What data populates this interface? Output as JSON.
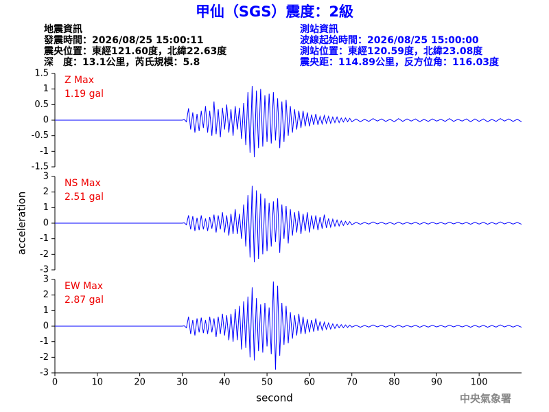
{
  "title": "甲仙（SGS）震度：2級",
  "header": {
    "left": [
      "地震資訊",
      "發震時間：2026/08/25 15:00:11",
      "震央位置：東經121.60度，北緯22.63度",
      "深　度：13.1公里，芮氏規模：5.8"
    ],
    "right": [
      "測站資訊",
      "波線起始時間：2026/08/25 15:00:00",
      "測站位置：東經120.59度，北緯23.08度",
      "震央距：114.89公里，反方位角：116.03度"
    ]
  },
  "footer": "中央氣象署",
  "chart_data": [
    {
      "type": "line",
      "label": "Z Max",
      "max_label": "1.19 gal",
      "color": "#0000ff",
      "xlim": [
        0,
        110
      ],
      "ylim": [
        -1.5,
        1.5
      ],
      "yticks": [
        -1.5,
        -1,
        -0.5,
        0,
        0.5,
        1,
        1.5
      ],
      "x": [
        0,
        30,
        30.5,
        31,
        31.5,
        32,
        32.5,
        33,
        33.5,
        34,
        34.5,
        35,
        35.5,
        36,
        36.5,
        37,
        37.5,
        38,
        38.5,
        39,
        39.5,
        40,
        40.5,
        41,
        41.5,
        42,
        42.5,
        43,
        43.5,
        44,
        44.5,
        45,
        45.5,
        46,
        46.5,
        47,
        47.5,
        48,
        48.5,
        49,
        49.5,
        50,
        50.5,
        51,
        51.5,
        52,
        52.5,
        53,
        53.5,
        54,
        54.5,
        55,
        55.5,
        56,
        56.5,
        57,
        57.5,
        58,
        58.5,
        59,
        59.5,
        60,
        60.5,
        61,
        61.5,
        62,
        62.5,
        63,
        63.5,
        64,
        64.5,
        65,
        65.5,
        66,
        66.5,
        67,
        67.5,
        68,
        68.5,
        69,
        69.5,
        70,
        71,
        72,
        73,
        74,
        75,
        76,
        77,
        78,
        79,
        80,
        81,
        82,
        83,
        84,
        85,
        86,
        87,
        88,
        89,
        90,
        91,
        92,
        93,
        94,
        95,
        96,
        97,
        98,
        99,
        100,
        101,
        102,
        103,
        104,
        105,
        106,
        107,
        108,
        109,
        110
      ],
      "values": [
        0,
        0,
        0.02,
        -0.05,
        0.38,
        -0.3,
        0.25,
        -0.4,
        0.2,
        -0.35,
        0.3,
        -0.25,
        0.45,
        -0.4,
        0.3,
        -0.5,
        0.6,
        -0.45,
        0.35,
        -0.55,
        0.4,
        -0.3,
        0.5,
        -0.4,
        0.35,
        -0.5,
        0.45,
        -0.3,
        0.4,
        -0.6,
        0.55,
        -0.8,
        0.9,
        -1.05,
        1.1,
        -1.19,
        0.95,
        -0.9,
        1.0,
        -0.85,
        0.8,
        -0.7,
        0.85,
        -0.75,
        0.9,
        -0.65,
        0.7,
        -0.9,
        0.6,
        -0.7,
        0.65,
        -0.5,
        0.45,
        -0.4,
        0.35,
        -0.3,
        0.3,
        -0.25,
        0.3,
        -0.2,
        0.25,
        -0.2,
        0.18,
        -0.15,
        0.2,
        -0.15,
        0.12,
        -0.12,
        0.15,
        -0.1,
        0.12,
        -0.1,
        0.1,
        -0.08,
        0.1,
        -0.08,
        0.07,
        -0.06,
        0.07,
        -0.05,
        0.06,
        -0.05,
        0.04,
        -0.05,
        0.03,
        -0.04,
        0.05,
        -0.03,
        0.04,
        -0.04,
        0.03,
        -0.05,
        0.05,
        -0.04,
        0.04,
        -0.03,
        0.04,
        -0.05,
        0.03,
        -0.04,
        0.04,
        -0.03,
        0.03,
        -0.04,
        0.05,
        -0.04,
        0.03,
        -0.03,
        0.04,
        -0.05,
        0.04,
        -0.04,
        0.04,
        -0.05,
        0.03,
        -0.04,
        0.05,
        -0.03,
        0.04,
        -0.04,
        0.03,
        -0.05
      ]
    },
    {
      "type": "line",
      "label": "NS Max",
      "max_label": "2.51 gal",
      "ylabel": "acceleration",
      "color": "#0000ff",
      "xlim": [
        0,
        110
      ],
      "ylim": [
        -3,
        3
      ],
      "yticks": [
        -3,
        -2,
        -1,
        0,
        1,
        2,
        3
      ],
      "x": [
        0,
        30,
        30.5,
        31,
        31.5,
        32,
        32.5,
        33,
        33.5,
        34,
        34.5,
        35,
        35.5,
        36,
        36.5,
        37,
        37.5,
        38,
        38.5,
        39,
        39.5,
        40,
        40.5,
        41,
        41.5,
        42,
        42.5,
        43,
        43.5,
        44,
        44.5,
        45,
        45.5,
        46,
        46.5,
        47,
        47.5,
        48,
        48.5,
        49,
        49.5,
        50,
        50.5,
        51,
        51.5,
        52,
        52.5,
        53,
        53.5,
        54,
        54.5,
        55,
        55.5,
        56,
        56.5,
        57,
        57.5,
        58,
        58.5,
        59,
        59.5,
        60,
        60.5,
        61,
        61.5,
        62,
        62.5,
        63,
        63.5,
        64,
        64.5,
        65,
        65.5,
        66,
        66.5,
        67,
        67.5,
        68,
        68.5,
        69,
        69.5,
        70,
        71,
        72,
        73,
        74,
        75,
        76,
        77,
        78,
        79,
        80,
        81,
        82,
        83,
        84,
        85,
        86,
        87,
        88,
        89,
        90,
        91,
        92,
        93,
        94,
        95,
        96,
        97,
        98,
        99,
        100,
        101,
        102,
        103,
        104,
        105,
        106,
        107,
        108,
        109,
        110
      ],
      "values": [
        0,
        0,
        0.02,
        -0.1,
        0.5,
        -0.4,
        0.45,
        -0.5,
        0.35,
        -0.45,
        0.5,
        -0.4,
        0.3,
        -0.5,
        0.4,
        -0.35,
        0.55,
        -0.6,
        0.5,
        -0.4,
        0.7,
        -0.6,
        0.5,
        -0.8,
        0.6,
        -0.7,
        0.9,
        -0.7,
        0.6,
        -1.0,
        1.2,
        -1.5,
        1.8,
        -2.2,
        2.4,
        -2.51,
        2.1,
        -2.3,
        1.9,
        -2.0,
        1.6,
        -1.8,
        1.3,
        -1.5,
        1.4,
        -1.2,
        1.6,
        -1.9,
        1.2,
        -1.0,
        1.1,
        -1.3,
        0.9,
        -0.8,
        0.7,
        -0.6,
        0.8,
        -0.7,
        0.6,
        -0.5,
        0.7,
        -0.6,
        0.5,
        -0.4,
        0.5,
        -0.45,
        0.4,
        -0.35,
        0.55,
        -0.3,
        0.3,
        -0.25,
        0.25,
        -0.2,
        0.2,
        -0.18,
        0.15,
        -0.15,
        0.12,
        -0.1,
        0.1,
        -0.1,
        0.06,
        -0.07,
        0.05,
        -0.06,
        0.08,
        -0.05,
        0.06,
        -0.06,
        0.05,
        -0.07,
        0.07,
        -0.06,
        0.05,
        -0.05,
        0.06,
        -0.07,
        0.05,
        -0.06,
        0.06,
        -0.05,
        0.05,
        -0.06,
        0.07,
        -0.05,
        0.06,
        -0.05,
        0.05,
        -0.07,
        0.06,
        -0.06,
        0.06,
        -0.07,
        0.05,
        -0.06,
        0.08,
        -0.05,
        0.06,
        -0.06,
        0.05,
        -0.07
      ]
    },
    {
      "type": "line",
      "label": "EW Max",
      "max_label": "2.87 gal",
      "xlabel": "second",
      "color": "#0000ff",
      "xlim": [
        0,
        110
      ],
      "ylim": [
        -3,
        3
      ],
      "yticks": [
        -3,
        -2,
        -1,
        0,
        1,
        2,
        3
      ],
      "xticks": [
        0,
        10,
        20,
        30,
        40,
        50,
        60,
        70,
        80,
        90,
        100
      ],
      "x": [
        0,
        30,
        30.5,
        31,
        31.5,
        32,
        32.5,
        33,
        33.5,
        34,
        34.5,
        35,
        35.5,
        36,
        36.5,
        37,
        37.5,
        38,
        38.5,
        39,
        39.5,
        40,
        40.5,
        41,
        41.5,
        42,
        42.5,
        43,
        43.5,
        44,
        44.5,
        45,
        45.5,
        46,
        46.5,
        47,
        47.5,
        48,
        48.5,
        49,
        49.5,
        50,
        50.5,
        51,
        51.5,
        52,
        52.5,
        53,
        53.5,
        54,
        54.5,
        55,
        55.5,
        56,
        56.5,
        57,
        57.5,
        58,
        58.5,
        59,
        59.5,
        60,
        60.5,
        61,
        61.5,
        62,
        62.5,
        63,
        63.5,
        64,
        64.5,
        65,
        65.5,
        66,
        66.5,
        67,
        67.5,
        68,
        68.5,
        69,
        69.5,
        70,
        71,
        72,
        73,
        74,
        75,
        76,
        77,
        78,
        79,
        80,
        81,
        82,
        83,
        84,
        85,
        86,
        87,
        88,
        89,
        90,
        91,
        92,
        93,
        94,
        95,
        96,
        97,
        98,
        99,
        100,
        101,
        102,
        103,
        104,
        105,
        106,
        107,
        108,
        109,
        110
      ],
      "values": [
        0,
        0,
        0.02,
        -0.1,
        0.6,
        -0.5,
        0.4,
        -0.6,
        0.5,
        -0.4,
        0.55,
        -0.45,
        0.4,
        -0.5,
        0.6,
        -0.4,
        0.5,
        -0.7,
        0.6,
        -0.5,
        0.8,
        -0.6,
        0.7,
        -0.9,
        0.8,
        -1.0,
        1.1,
        -0.9,
        1.3,
        -1.5,
        1.6,
        -1.4,
        1.9,
        -2.0,
        2.5,
        -2.2,
        1.8,
        -1.6,
        1.4,
        -1.7,
        1.5,
        -1.3,
        1.2,
        -1.8,
        2.87,
        -2.8,
        2.6,
        -1.9,
        1.5,
        -1.2,
        1.3,
        -1.1,
        0.9,
        -0.8,
        0.7,
        -0.6,
        0.8,
        -0.5,
        0.6,
        -0.5,
        0.45,
        -0.4,
        0.4,
        -0.35,
        0.5,
        -0.3,
        0.3,
        -0.25,
        0.25,
        -0.2,
        0.2,
        -0.18,
        0.15,
        -0.15,
        0.12,
        -0.1,
        0.1,
        -0.1,
        0.08,
        -0.08,
        0.07,
        -0.06,
        0.06,
        -0.07,
        0.05,
        -0.06,
        0.08,
        -0.05,
        0.06,
        -0.06,
        0.05,
        -0.07,
        0.07,
        -0.06,
        0.05,
        -0.05,
        0.06,
        -0.07,
        0.05,
        -0.06,
        0.06,
        -0.05,
        0.05,
        -0.06,
        0.07,
        -0.05,
        0.06,
        -0.05,
        0.05,
        -0.07,
        0.06,
        -0.06,
        0.06,
        -0.07,
        0.05,
        -0.06,
        0.08,
        -0.05,
        0.06,
        -0.06,
        0.05,
        -0.07
      ]
    }
  ]
}
